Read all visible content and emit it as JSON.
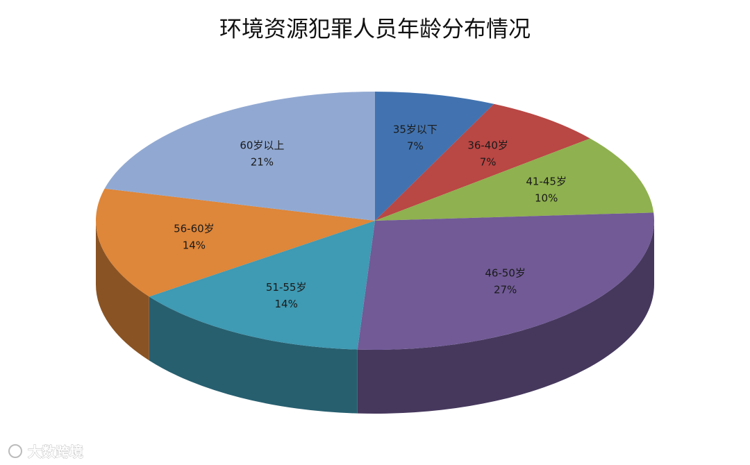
{
  "chart_data": {
    "type": "pie",
    "title": "环境资源犯罪人员年龄分布情况",
    "categories": [
      "35岁以下",
      "36-40岁",
      "41-45岁",
      "46-50岁",
      "51-55岁",
      "56-60岁",
      "60岁以上"
    ],
    "values": [
      7,
      7,
      10,
      27,
      14,
      14,
      21
    ],
    "value_labels": [
      "7%",
      "7%",
      "10%",
      "27%",
      "14%",
      "14%",
      "21%"
    ],
    "colors": [
      "#4273b0",
      "#b94744",
      "#8fb14f",
      "#715a96",
      "#3f9ab3",
      "#de8639",
      "#91a9d2"
    ]
  },
  "watermark": "大数跨境"
}
